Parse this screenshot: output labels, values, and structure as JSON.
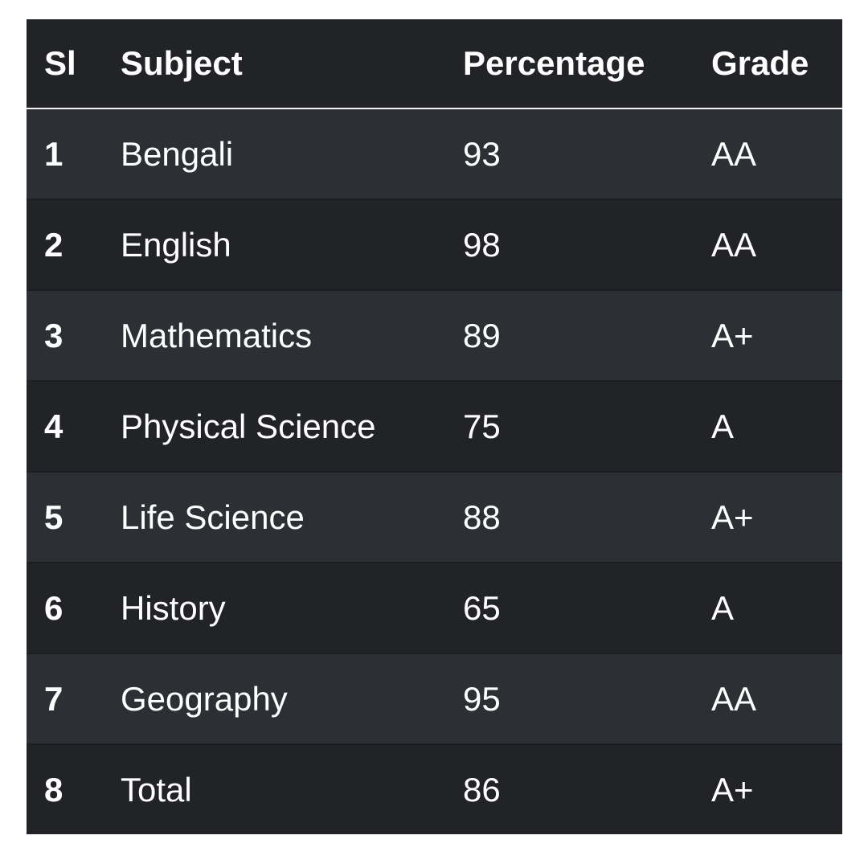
{
  "table": {
    "headers": {
      "si": "Sl",
      "subject": "Subject",
      "percentage": "Percentage",
      "grade": "Grade"
    },
    "rows": [
      {
        "si": "1",
        "subject": "Bengali",
        "percentage": "93",
        "grade": "AA"
      },
      {
        "si": "2",
        "subject": "English",
        "percentage": "98",
        "grade": "AA"
      },
      {
        "si": "3",
        "subject": "Mathematics",
        "percentage": "89",
        "grade": "A+"
      },
      {
        "si": "4",
        "subject": "Physical Science",
        "percentage": "75",
        "grade": "A"
      },
      {
        "si": "5",
        "subject": "Life Science",
        "percentage": "88",
        "grade": "A+"
      },
      {
        "si": "6",
        "subject": "History",
        "percentage": "65",
        "grade": "A"
      },
      {
        "si": "7",
        "subject": "Geography",
        "percentage": "95",
        "grade": "AA"
      },
      {
        "si": "8",
        "subject": "Total",
        "percentage": "86",
        "grade": "A+"
      }
    ]
  },
  "colors": {
    "header_bg": "#212327",
    "row_odd_bg": "#2c2f34",
    "row_even_bg": "#212327",
    "text": "#ffffff",
    "header_divider": "#f2f2f2"
  }
}
